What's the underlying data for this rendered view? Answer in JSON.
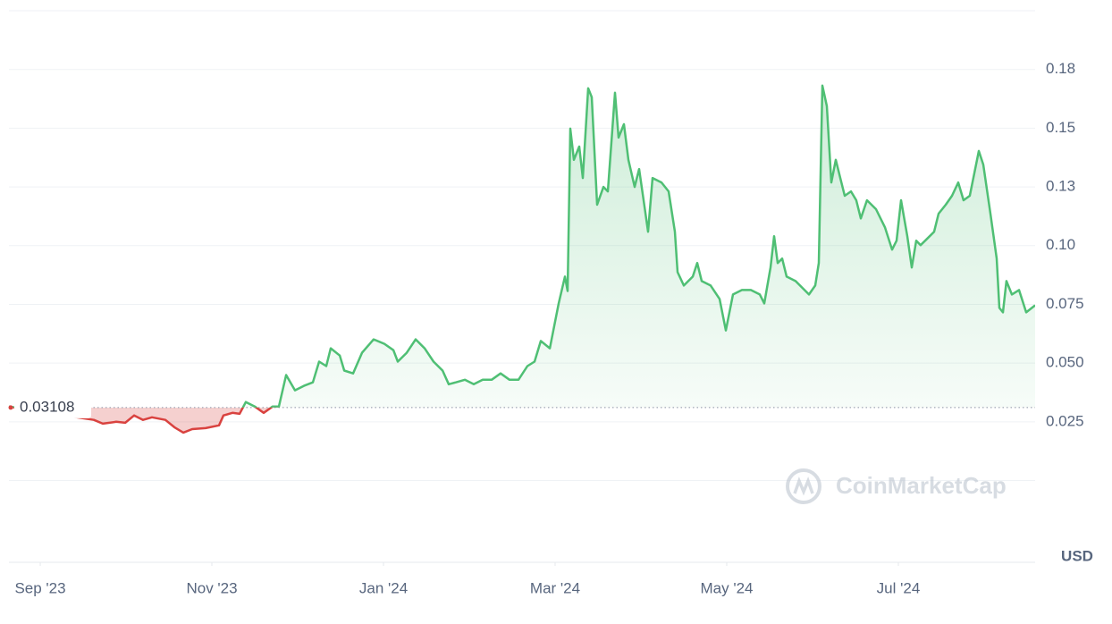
{
  "chart_data": {
    "type": "line",
    "watermark": "CoinMarketCap",
    "currency": "USD",
    "reference_value": 0.03108,
    "up_color": "#4fbf74",
    "down_color": "#d9423f",
    "grid": true,
    "xlim": [
      -0.365,
      11.594
    ],
    "xticks": [
      {
        "value": 0,
        "label": "Sep '23"
      },
      {
        "value": 2,
        "label": "Nov '23"
      },
      {
        "value": 4,
        "label": "Jan '24"
      },
      {
        "value": 6,
        "label": "Mar '24"
      },
      {
        "value": 8,
        "label": "May '24"
      },
      {
        "value": 10,
        "label": "Jul '24"
      }
    ],
    "ylim": [
      0,
      0.2
    ],
    "yticks": [
      0.025,
      {
        "value": 0.05,
        "label": "0.050"
      },
      0.075,
      {
        "value": 0.1,
        "label": "0.10"
      },
      {
        "value": 0.125,
        "label": "0.13"
      },
      0.15,
      {
        "value": 0.175,
        "label": "0.18"
      }
    ],
    "x": [
      -0.365,
      0.156,
      0.625,
      0.729,
      0.885,
      0.99,
      1.094,
      1.198,
      1.302,
      1.458,
      1.563,
      1.667,
      1.771,
      1.927,
      2.083,
      2.135,
      2.24,
      2.323,
      2.396,
      2.5,
      2.604,
      2.708,
      2.781,
      2.865,
      2.969,
      3.073,
      3.177,
      3.25,
      3.333,
      3.385,
      3.49,
      3.542,
      3.646,
      3.75,
      3.885,
      4.01,
      4.115,
      4.167,
      4.271,
      4.375,
      4.479,
      4.583,
      4.688,
      4.76,
      4.844,
      4.948,
      5.052,
      5.156,
      5.26,
      5.365,
      5.469,
      5.573,
      5.677,
      5.76,
      5.833,
      5.938,
      6.042,
      6.115,
      6.146,
      6.177,
      6.219,
      6.281,
      6.323,
      6.385,
      6.427,
      6.49,
      6.563,
      6.615,
      6.698,
      6.74,
      6.802,
      6.854,
      6.927,
      6.979,
      7.031,
      7.083,
      7.135,
      7.24,
      7.323,
      7.396,
      7.427,
      7.5,
      7.604,
      7.656,
      7.708,
      7.813,
      7.917,
      7.99,
      8.073,
      8.177,
      8.281,
      8.385,
      8.438,
      8.51,
      8.552,
      8.594,
      8.646,
      8.698,
      8.802,
      8.906,
      8.958,
      9.031,
      9.073,
      9.115,
      9.167,
      9.219,
      9.271,
      9.323,
      9.375,
      9.448,
      9.51,
      9.563,
      9.635,
      9.74,
      9.844,
      9.927,
      9.979,
      10.031,
      10.104,
      10.156,
      10.208,
      10.26,
      10.313,
      10.417,
      10.469,
      10.552,
      10.625,
      10.698,
      10.76,
      10.833,
      10.938,
      10.99,
      11.073,
      11.146,
      11.177,
      11.219,
      11.26,
      11.323,
      11.406,
      11.49,
      11.594
    ],
    "values": [
      0.0315,
      0.0284,
      0.0258,
      0.0242,
      0.025,
      0.0246,
      0.0277,
      0.0258,
      0.0269,
      0.0258,
      0.0227,
      0.0204,
      0.0219,
      0.0223,
      0.0235,
      0.0277,
      0.0288,
      0.0284,
      0.0334,
      0.0315,
      0.0288,
      0.0315,
      0.0315,
      0.0449,
      0.0384,
      0.0403,
      0.0418,
      0.0506,
      0.0487,
      0.0563,
      0.0532,
      0.0468,
      0.0456,
      0.0544,
      0.0601,
      0.0582,
      0.0555,
      0.0506,
      0.0544,
      0.0601,
      0.0563,
      0.0506,
      0.0468,
      0.041,
      0.0418,
      0.0429,
      0.041,
      0.0429,
      0.0429,
      0.0456,
      0.0429,
      0.0429,
      0.0487,
      0.0506,
      0.0594,
      0.0563,
      0.0754,
      0.0868,
      0.0807,
      0.1498,
      0.1365,
      0.1422,
      0.1288,
      0.167,
      0.1632,
      0.1174,
      0.125,
      0.1231,
      0.1651,
      0.146,
      0.1517,
      0.1365,
      0.125,
      0.1326,
      0.1193,
      0.1059,
      0.1288,
      0.1269,
      0.1231,
      0.1059,
      0.0887,
      0.083,
      0.0868,
      0.0926,
      0.0849,
      0.083,
      0.0773,
      0.0639,
      0.0792,
      0.0811,
      0.0811,
      0.0792,
      0.0754,
      0.0907,
      0.104,
      0.0926,
      0.0945,
      0.0868,
      0.0849,
      0.0811,
      0.0792,
      0.083,
      0.0926,
      0.1681,
      0.1594,
      0.1269,
      0.1365,
      0.1288,
      0.1212,
      0.1231,
      0.1193,
      0.1116,
      0.1193,
      0.1155,
      0.1078,
      0.0983,
      0.1021,
      0.1193,
      0.104,
      0.0907,
      0.1021,
      0.1002,
      0.1021,
      0.1059,
      0.1136,
      0.1174,
      0.1212,
      0.1269,
      0.1193,
      0.1212,
      0.1403,
      0.1345,
      0.1136,
      0.0945,
      0.0735,
      0.0716,
      0.0849,
      0.0792,
      0.0811,
      0.0716,
      0.0746
    ]
  }
}
